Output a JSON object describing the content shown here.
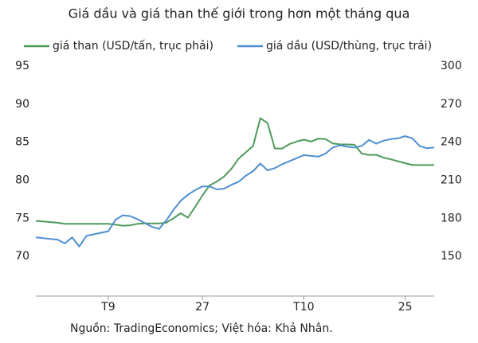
{
  "chart_data": {
    "type": "line",
    "title": "Giá dầu và giá than thế giới trong hơn một tháng qua",
    "source": "Nguồn: TradingEconomics; Việt hóa: Khả Nhân.",
    "categories": [
      null,
      null,
      null,
      null,
      null,
      null,
      null,
      null,
      null,
      null,
      "T9",
      null,
      null,
      null,
      null,
      null,
      null,
      null,
      null,
      null,
      null,
      null,
      null,
      "27",
      null,
      null,
      null,
      null,
      null,
      null,
      null,
      null,
      null,
      null,
      null,
      null,
      null,
      "T10",
      null,
      null,
      null,
      null,
      null,
      null,
      null,
      null,
      null,
      null,
      null,
      null,
      null,
      "25",
      null,
      null,
      null,
      null
    ],
    "ylim": [
      65,
      95
    ],
    "yticks": [
      70,
      75,
      80,
      85,
      90,
      95
    ],
    "y2lim": [
      120,
      300
    ],
    "y2ticks": [
      150,
      180,
      210,
      240,
      270,
      300
    ],
    "series": [
      {
        "name": "giá than (USD/tấn, trục phải)",
        "color": "#4e9a5a",
        "axis": "y2",
        "values": [
          178,
          177.5,
          177,
          176.5,
          175.6,
          175.6,
          175.6,
          175.6,
          175.6,
          175.6,
          175.6,
          175,
          174.2,
          174.5,
          175.6,
          176,
          176,
          176,
          176.5,
          180,
          184,
          180.5,
          189,
          198,
          206,
          209,
          213,
          219,
          227,
          232,
          237,
          259,
          255,
          235,
          235,
          238.5,
          240.5,
          242,
          240.5,
          242.8,
          242.5,
          239,
          238.3,
          238.2,
          238,
          231,
          230,
          230,
          227.8,
          226.5,
          225,
          223.5,
          222,
          222,
          222,
          222
        ]
      },
      {
        "name": "giá dầu (USD/thùng, trục trái)",
        "color": "#4f8fd0",
        "values": [
          72.5,
          72.4,
          72.3,
          72.2,
          71.7,
          72.5,
          71.3,
          72.7,
          72.9,
          73.1,
          73.3,
          74.8,
          75.4,
          75.3,
          74.9,
          74.4,
          73.9,
          73.6,
          74.7,
          76.1,
          77.3,
          78.1,
          78.7,
          79.2,
          79.2,
          78.8,
          78.9,
          79.4,
          79.8,
          80.6,
          81.2,
          82.2,
          81.3,
          81.6,
          82.1,
          82.5,
          82.9,
          83.3,
          83.2,
          83.1,
          83.5,
          84.3,
          84.6,
          84.4,
          84.3,
          84.5,
          85.3,
          84.8,
          85.2,
          85.4,
          85.5,
          85.8,
          85.5,
          84.5,
          84.2,
          84.3
        ]
      }
    ]
  }
}
